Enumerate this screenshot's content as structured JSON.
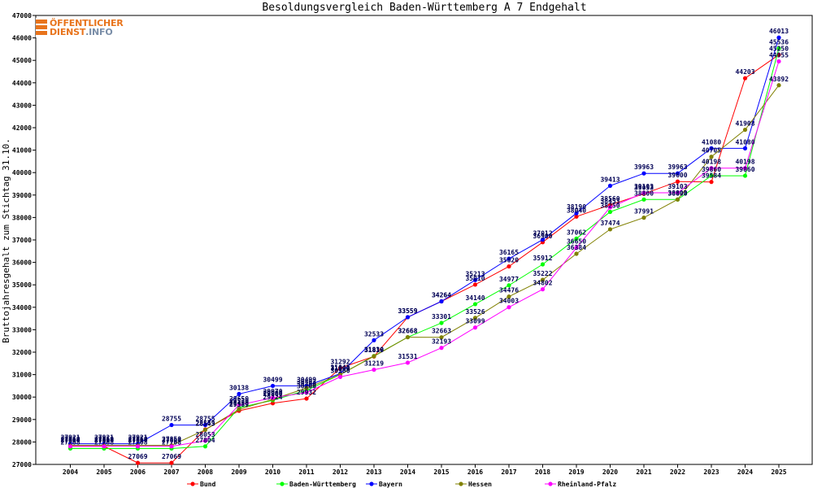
{
  "chart_data": {
    "type": "line",
    "title": "Besoldungsvergleich Baden-Württemberg A 7 Endgehalt",
    "xlabel": "",
    "ylabel": "Bruttojahresgehalt zum Stichtag 31.10.",
    "ylim": [
      27000,
      47000
    ],
    "yticks": [
      27000,
      28000,
      29000,
      30000,
      31000,
      32000,
      33000,
      34000,
      35000,
      36000,
      37000,
      38000,
      39000,
      40000,
      41000,
      42000,
      43000,
      44000,
      45000,
      46000,
      47000
    ],
    "x": [
      "2004",
      "2005",
      "2006",
      "2007",
      "2008",
      "2009",
      "2010",
      "2011",
      "2012",
      "2013",
      "2014",
      "2015",
      "2016",
      "2017",
      "2018",
      "2019",
      "2020",
      "2021",
      "2022",
      "2023",
      "2024",
      "2025"
    ],
    "grid": false,
    "legend": "bottom",
    "series": [
      {
        "name": "Bund",
        "color": "#ff0000",
        "values": [
          27804,
          27804,
          27069,
          27069,
          28559,
          29389,
          29724,
          29932,
          31292,
          31810,
          33559,
          34264,
          35010,
          35820,
          36900,
          38040,
          38560,
          39053,
          39600,
          39584,
          44203,
          45250
        ]
      },
      {
        "name": "Baden-Württemberg",
        "color": "#00ff00",
        "values": [
          27708,
          27708,
          27708,
          27708,
          27804,
          29530,
          29860,
          30300,
          31000,
          31830,
          32668,
          33301,
          34140,
          34977,
          35912,
          37062,
          38250,
          38800,
          38800,
          39860,
          39860,
          45536
        ]
      },
      {
        "name": "Bayern",
        "color": "#0000ff",
        "values": [
          27921,
          27921,
          27921,
          28755,
          28755,
          30138,
          30499,
          30499,
          31045,
          32533,
          33559,
          34264,
          35213,
          36165,
          37012,
          38190,
          39413,
          39963,
          39963,
          41080,
          41080,
          46013
        ]
      },
      {
        "name": "Hessen",
        "color": "#808000",
        "values": [
          27850,
          27850,
          27850,
          27850,
          28543,
          29450,
          29900,
          30403,
          31000,
          31819,
          32668,
          32663,
          33526,
          34476,
          35222,
          36384,
          37474,
          37991,
          38803,
          40705,
          41908,
          43892
        ]
      },
      {
        "name": "Rheinland-Pfalz",
        "color": "#ff00ff",
        "values": [
          27804,
          27804,
          27804,
          27804,
          28053,
          29650,
          29970,
          30200,
          30900,
          31219,
          31531,
          32193,
          33099,
          34003,
          34802,
          36650,
          38453,
          39103,
          39103,
          40198,
          40198,
          44955
        ]
      }
    ],
    "data_labels": [
      {
        "series": 0,
        "labels": [
          "27804",
          "27804",
          "27069",
          "27069",
          "28559",
          "29389",
          "29724",
          "29932",
          "31292",
          "31810",
          "33559",
          "34264",
          "35010",
          "35820",
          "36900",
          "38040",
          "38560",
          "39053",
          "39600",
          "39584",
          "44203",
          "45250"
        ]
      },
      {
        "series": 1,
        "labels": [
          "27708",
          "27708",
          "27708",
          "27708",
          "27804",
          "29530",
          "29860",
          "30300",
          "31000",
          "31830",
          "32668",
          "33301",
          "34140",
          "34977",
          "35912",
          "37062",
          "38250",
          "38800",
          "38800",
          "39860",
          "39860",
          "45536"
        ]
      },
      {
        "series": 2,
        "labels": [
          "27921",
          "27921",
          "27921",
          "28755",
          "28755",
          "30138",
          "30499",
          "30499",
          "31045",
          "32533",
          "33559",
          "34264",
          "35213",
          "36165",
          "37012",
          "38190",
          "39413",
          "39963",
          "39963",
          "41080",
          "41080",
          "46013"
        ]
      },
      {
        "series": 3,
        "labels": [
          "27850",
          "27850",
          "27850",
          "27850",
          "28543",
          "29450",
          "29900",
          "30403",
          "31000",
          "31819",
          "32668",
          "32663",
          "33526",
          "34476",
          "35222",
          "36384",
          "37474",
          "37991",
          "38803",
          "40705",
          "41908",
          "43892"
        ]
      },
      {
        "series": 4,
        "labels": [
          "27804",
          "27804",
          "27804",
          "27804",
          "28053",
          "29650",
          "29970",
          "30200",
          "30900",
          "31219",
          "31531",
          "32193",
          "33099",
          "34003",
          "34802",
          "36650",
          "38453",
          "39103",
          "39103",
          "40198",
          "40198",
          "44955"
        ]
      }
    ]
  },
  "logo": {
    "line1": "ÖFFENTLICHER",
    "line2a": "DIENST",
    "line2b": ".INFO"
  }
}
